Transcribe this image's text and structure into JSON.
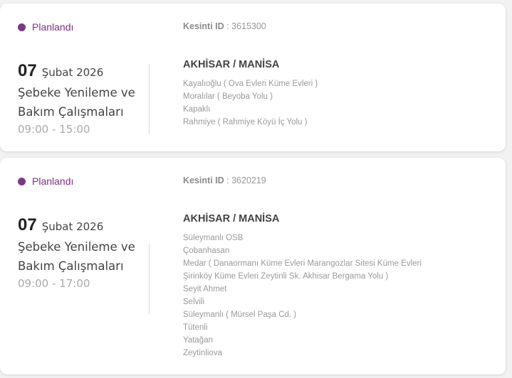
{
  "status_color": "#7b3a85",
  "outages": [
    {
      "status": "Planlandı",
      "id_label": "Kesinti ID",
      "id_value": ": 3615300",
      "day": "07",
      "month_year": "Şubat 2026",
      "title": "Şebeke Yenileme ve Bakım Çalışmaları",
      "time": "09:00 - 15:00",
      "location": "AKHİSAR / MANİSA",
      "areas": [
        "Kayalıoğlu ( Ova Evleri Küme Evleri )",
        "Moralılar ( Beyoba Yolu )",
        "Kapaklı",
        "Rahmiye ( Rahmiye Köyü İç Yolu )"
      ]
    },
    {
      "status": "Planlandı",
      "id_label": "Kesinti ID",
      "id_value": ": 3620219",
      "day": "07",
      "month_year": "Şubat 2026",
      "title": "Şebeke Yenileme ve Bakım Çalışmaları",
      "time": "09:00 - 17:00",
      "location": "AKHİSAR / MANİSA",
      "areas": [
        "Süleymanlı OSB",
        "Çobanhasan",
        "Medar ( Danaormanı Küme Evleri Marangozlar Sitesi Küme Evleri",
        "Şirinköy Küme Evleri Zeytinli Sk. Akhisar Bergama Yolu )",
        "Seyit Ahmet",
        "Selvili",
        "Süleymanlı ( Mürsel Paşa Cd. )",
        "Tütenli",
        "Yatağan",
        "Zeytinliova"
      ]
    }
  ]
}
